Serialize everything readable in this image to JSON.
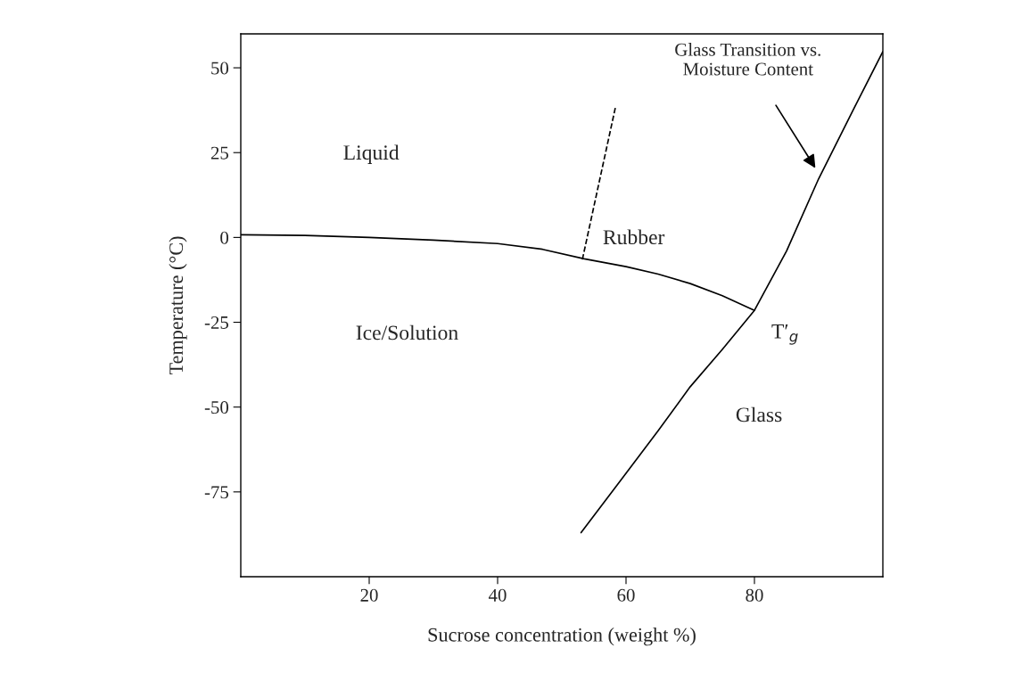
{
  "chart_data": {
    "type": "line",
    "xlabel": "Sucrose concentration (weight %)",
    "ylabel": "Temperature (°C)",
    "xlim": [
      0,
      100
    ],
    "ylim": [
      -100,
      60
    ],
    "xticks": [
      20,
      40,
      60,
      80
    ],
    "yticks": [
      50,
      25,
      0,
      -25,
      -50,
      -75
    ],
    "grid": false,
    "legend": false,
    "marker": "none",
    "series": [
      {
        "color": "#000000",
        "line_style": "solid",
        "x": [
          0,
          10,
          20,
          30,
          40,
          47,
          53.5,
          60,
          65,
          70,
          75,
          80
        ],
        "values": [
          0.8,
          0.6,
          0,
          -0.8,
          -1.8,
          -3.5,
          -6.3,
          -8.6,
          -10.8,
          -13.6,
          -17.2,
          -21.5
        ]
      },
      {
        "color": "#000000",
        "line_style": "solid",
        "x": [
          53,
          59,
          65,
          70,
          75,
          80,
          85,
          90,
          95.5,
          100
        ],
        "values": [
          -87,
          -72,
          -57,
          -44,
          -33,
          -21.5,
          -4,
          17.3,
          38,
          54.8
        ]
      },
      {
        "color": "#000000",
        "line_style": "dashed",
        "x": [
          53.2,
          58.4
        ],
        "values": [
          -6.5,
          38.8
        ]
      }
    ],
    "annotations": [
      "Liquid",
      "Rubber",
      "Ice/Solution",
      "Glass",
      "T′$_{g}$",
      "Glass Transition vs.\nMoisture Content"
    ]
  }
}
